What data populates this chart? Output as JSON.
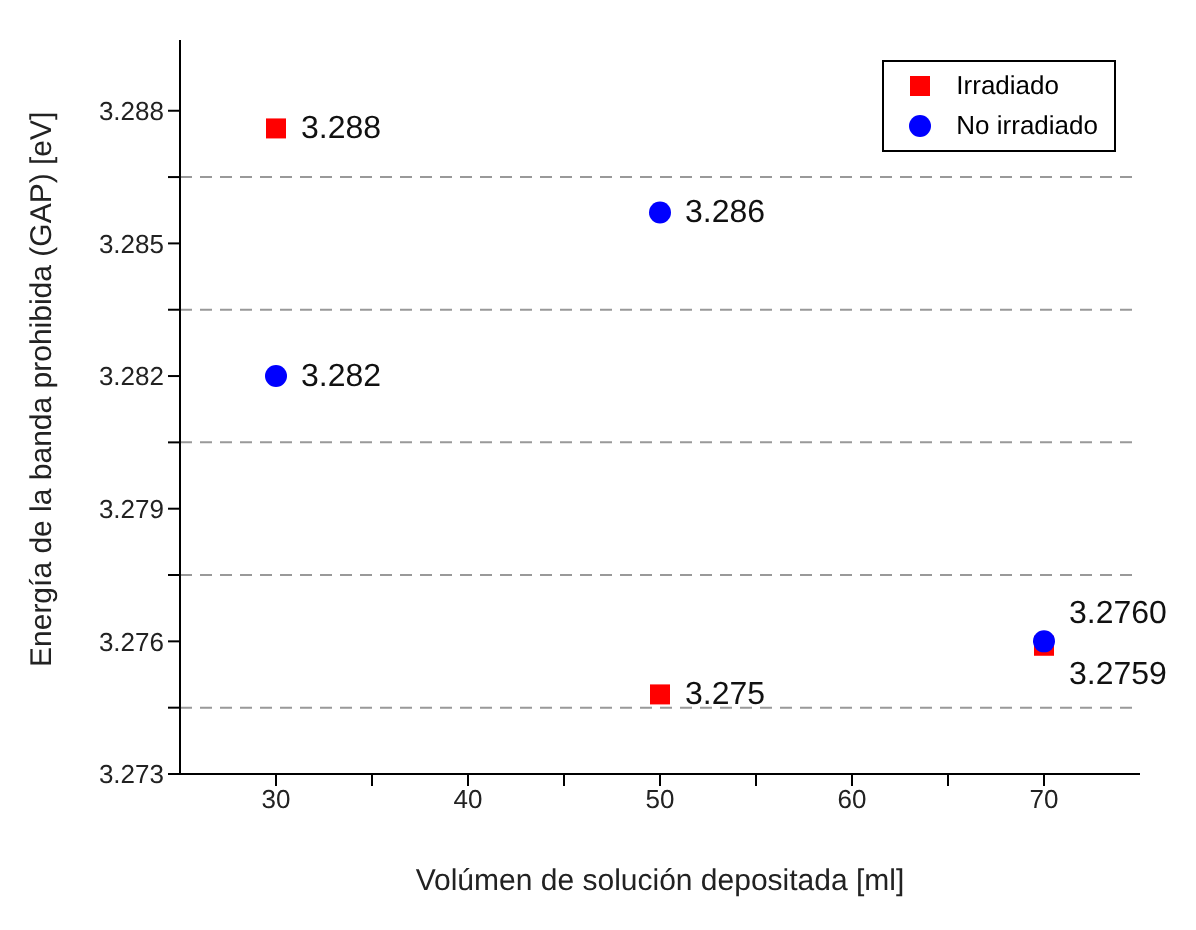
{
  "chart_data": {
    "type": "scatter",
    "xlabel": "Volúmen de solución depositada [ml]",
    "ylabel": "Energía de la banda prohibida (GAP) [eV]",
    "x": [
      30,
      50,
      70
    ],
    "series": [
      {
        "name": "Irradiado",
        "color": "#ff0000",
        "marker": "square",
        "values": [
          3.2876,
          3.2748,
          3.2759
        ],
        "value_labels": [
          "3.288",
          "3.275",
          "3.2759"
        ]
      },
      {
        "name": "No irradiado",
        "color": "#0000ff",
        "marker": "circle",
        "values": [
          3.282,
          3.2857,
          3.276
        ],
        "value_labels": [
          "3.282",
          "3.286",
          "3.2760"
        ]
      }
    ],
    "xlim": [
      25,
      75
    ],
    "xticks": [
      30,
      {
        "value": 35,
        "label": null
      },
      40,
      {
        "value": 45,
        "label": null
      },
      50,
      {
        "value": 55,
        "label": null
      },
      60,
      {
        "value": 65,
        "label": null
      },
      70
    ],
    "ylim": [
      3.273,
      3.2896
    ],
    "yticks": [
      3.273,
      {
        "value": 3.2745,
        "label": null
      },
      3.276,
      {
        "value": 3.2775,
        "label": null
      },
      3.279,
      {
        "value": 3.2805,
        "label": null
      },
      3.282,
      {
        "value": 3.2835,
        "label": null
      },
      3.285,
      {
        "value": 3.2865,
        "label": null
      },
      3.288
    ],
    "grid": "y",
    "legend": "top right"
  }
}
